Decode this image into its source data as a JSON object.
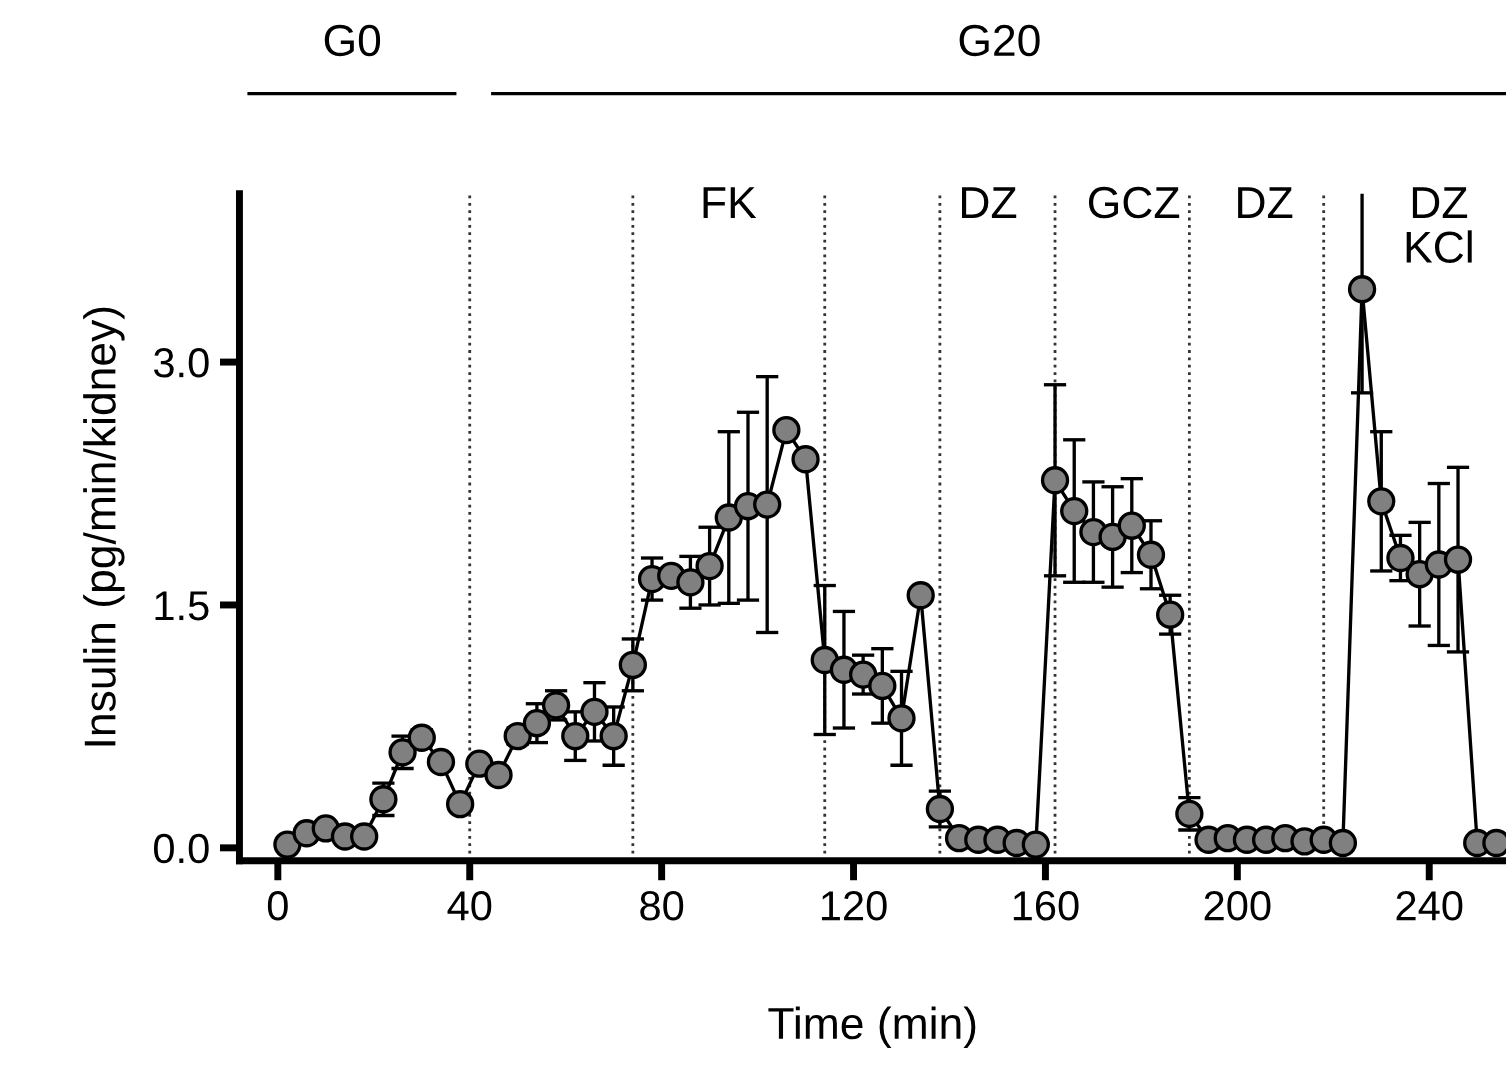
{
  "chart_data": {
    "type": "line",
    "xlabel": "Time (min)",
    "ylabel": "Insulin (pg/min/kidney)",
    "x": [
      2,
      6,
      10,
      14,
      18,
      22,
      26,
      30,
      34,
      38,
      42,
      46,
      50,
      54,
      58,
      62,
      66,
      70,
      74,
      78,
      82,
      86,
      90,
      94,
      98,
      102,
      106,
      110,
      114,
      118,
      122,
      126,
      130,
      134,
      138,
      142,
      146,
      150,
      154,
      158,
      162,
      166,
      170,
      174,
      178,
      182,
      186,
      190,
      194,
      198,
      202,
      206,
      210,
      214,
      218,
      222,
      226,
      230,
      234,
      238,
      242,
      246,
      250,
      254
    ],
    "series": [
      {
        "color": "#808080",
        "values": [
          0.02,
          0.09,
          0.12,
          0.07,
          0.07,
          0.3,
          0.59,
          0.68,
          0.53,
          0.27,
          0.52,
          0.45,
          0.69,
          0.77,
          0.88,
          0.69,
          0.84,
          0.69,
          1.13,
          1.66,
          1.68,
          1.64,
          1.74,
          2.04,
          2.11,
          2.12,
          2.58,
          2.4,
          1.16,
          1.1,
          1.07,
          1.0,
          0.8,
          1.56,
          0.24,
          0.06,
          0.05,
          0.05,
          0.03,
          0.02,
          2.27,
          2.08,
          1.95,
          1.92,
          1.99,
          1.81,
          1.44,
          0.21,
          0.05,
          0.06,
          0.05,
          0.05,
          0.06,
          0.04,
          0.05,
          0.03,
          3.45,
          2.14,
          1.79,
          1.69,
          1.75,
          1.78,
          0.03,
          0.03
        ],
        "errors": [
          null,
          null,
          null,
          null,
          null,
          0.1,
          0.1,
          0.05,
          0.04,
          null,
          null,
          null,
          0.05,
          0.12,
          0.09,
          0.15,
          0.18,
          0.18,
          0.16,
          0.13,
          null,
          0.16,
          0.24,
          0.53,
          0.58,
          0.79,
          null,
          null,
          0.46,
          0.36,
          0.12,
          0.23,
          0.29,
          null,
          0.11,
          null,
          null,
          null,
          null,
          null,
          0.59,
          0.44,
          0.31,
          0.31,
          0.29,
          0.21,
          0.12,
          0.1,
          null,
          null,
          null,
          null,
          null,
          null,
          null,
          null,
          0.64,
          0.43,
          0.14,
          0.32,
          0.5,
          0.57,
          null,
          null
        ]
      }
    ],
    "xlim": [
      -8,
      256
    ],
    "ylim": [
      -0.08,
      4.04
    ],
    "xticks": [
      0,
      40,
      80,
      120,
      160,
      200,
      240
    ],
    "yticks": [
      {
        "value": 0,
        "label": "0.0"
      },
      {
        "value": 1.5,
        "label": "1.5"
      },
      {
        "value": 3,
        "label": "3.0"
      }
    ],
    "marker": "circle",
    "line_style": "solid",
    "grid": false,
    "legend": false,
    "ref_lines": [
      {
        "axis": "x",
        "value": 40,
        "line_style": "dotted"
      },
      {
        "axis": "x",
        "value": 74,
        "line_style": "dotted"
      },
      {
        "axis": "x",
        "value": 114,
        "line_style": "dotted"
      },
      {
        "axis": "x",
        "value": 138,
        "line_style": "dotted"
      },
      {
        "axis": "x",
        "value": 162,
        "line_style": "dotted"
      },
      {
        "axis": "x",
        "value": 190,
        "line_style": "dotted"
      },
      {
        "axis": "x",
        "value": 218,
        "line_style": "dotted"
      }
    ],
    "annotations": [
      "G0",
      "G20",
      "FK",
      "DZ",
      "GCZ",
      "DZ",
      "DZ\nKCl"
    ]
  }
}
